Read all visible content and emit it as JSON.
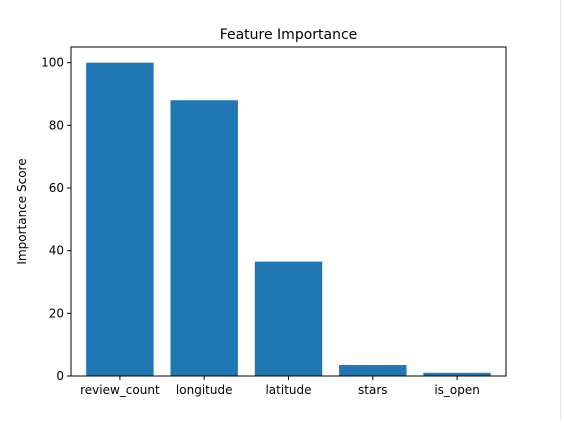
{
  "chart_data": {
    "type": "bar",
    "title": "Feature Importance",
    "xlabel": "",
    "ylabel": "Importance Score",
    "categories": [
      "review_count",
      "longitude",
      "latitude",
      "stars",
      "is_open"
    ],
    "values": [
      100,
      88,
      36.5,
      3.5,
      1
    ],
    "ylim": [
      0,
      105
    ],
    "yticks": [
      0,
      20,
      40,
      60,
      80,
      100
    ],
    "bar_color": "#1f77b4",
    "grid": false,
    "legend": "none"
  }
}
